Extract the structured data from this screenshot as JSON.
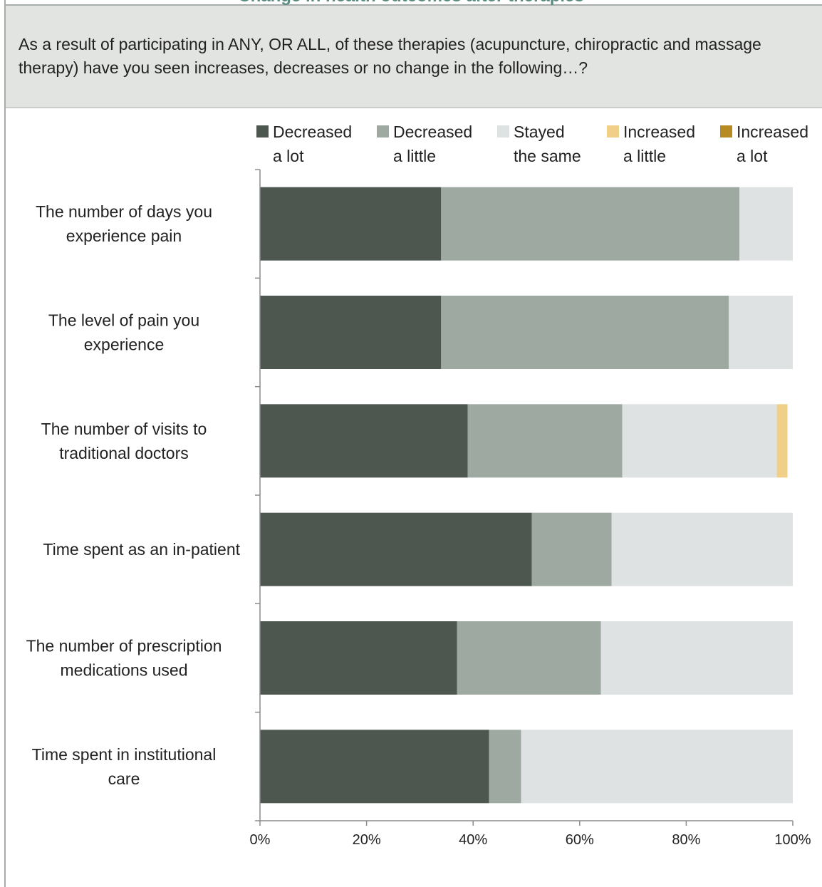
{
  "header": {
    "title": "Change in health outcomes after therapies",
    "question": "As a result of participating in ANY, OR ALL, of these therapies (acupuncture, chiropractic and massage therapy) have you seen increases, decreases or no change in the following…?"
  },
  "chart_data": {
    "type": "bar",
    "orientation": "horizontal",
    "stacked": true,
    "categories": [
      [
        "The number of days you",
        "experience pain"
      ],
      [
        "The level of pain you",
        "experience"
      ],
      [
        "The number of visits to",
        "traditional doctors"
      ],
      [
        "Time spent as an in-patient"
      ],
      [
        "The number of prescription",
        "medications used"
      ],
      [
        "Time spent in institutional",
        "care"
      ]
    ],
    "series": [
      {
        "name": "Decreased a lot",
        "legend_lines": [
          "Decreased",
          "a lot"
        ],
        "color": "#4d5750",
        "values": [
          34,
          34,
          39,
          51,
          37,
          43
        ]
      },
      {
        "name": "Decreased a little",
        "legend_lines": [
          "Decreased",
          "a little"
        ],
        "color": "#9ea9a1",
        "values": [
          56,
          54,
          29,
          15,
          27,
          6
        ]
      },
      {
        "name": "Stayed the same",
        "legend_lines": [
          "Stayed",
          "the same"
        ],
        "color": "#dfe2e3",
        "values": [
          10,
          12,
          29,
          34,
          36,
          51
        ]
      },
      {
        "name": "Increased a little",
        "legend_lines": [
          "Increased",
          "a little"
        ],
        "color": "#f0cf88",
        "values": [
          0,
          0,
          2,
          0,
          0,
          0
        ]
      },
      {
        "name": "Increased a lot",
        "legend_lines": [
          "Increased",
          "a lot"
        ],
        "color": "#b88a22",
        "values": [
          0,
          0,
          0,
          0,
          0,
          0
        ]
      }
    ],
    "xlim": [
      0,
      100
    ],
    "x_ticks": [
      "0%",
      "20%",
      "40%",
      "60%",
      "80%",
      "100%"
    ],
    "legend_position": "top",
    "grid": false
  }
}
